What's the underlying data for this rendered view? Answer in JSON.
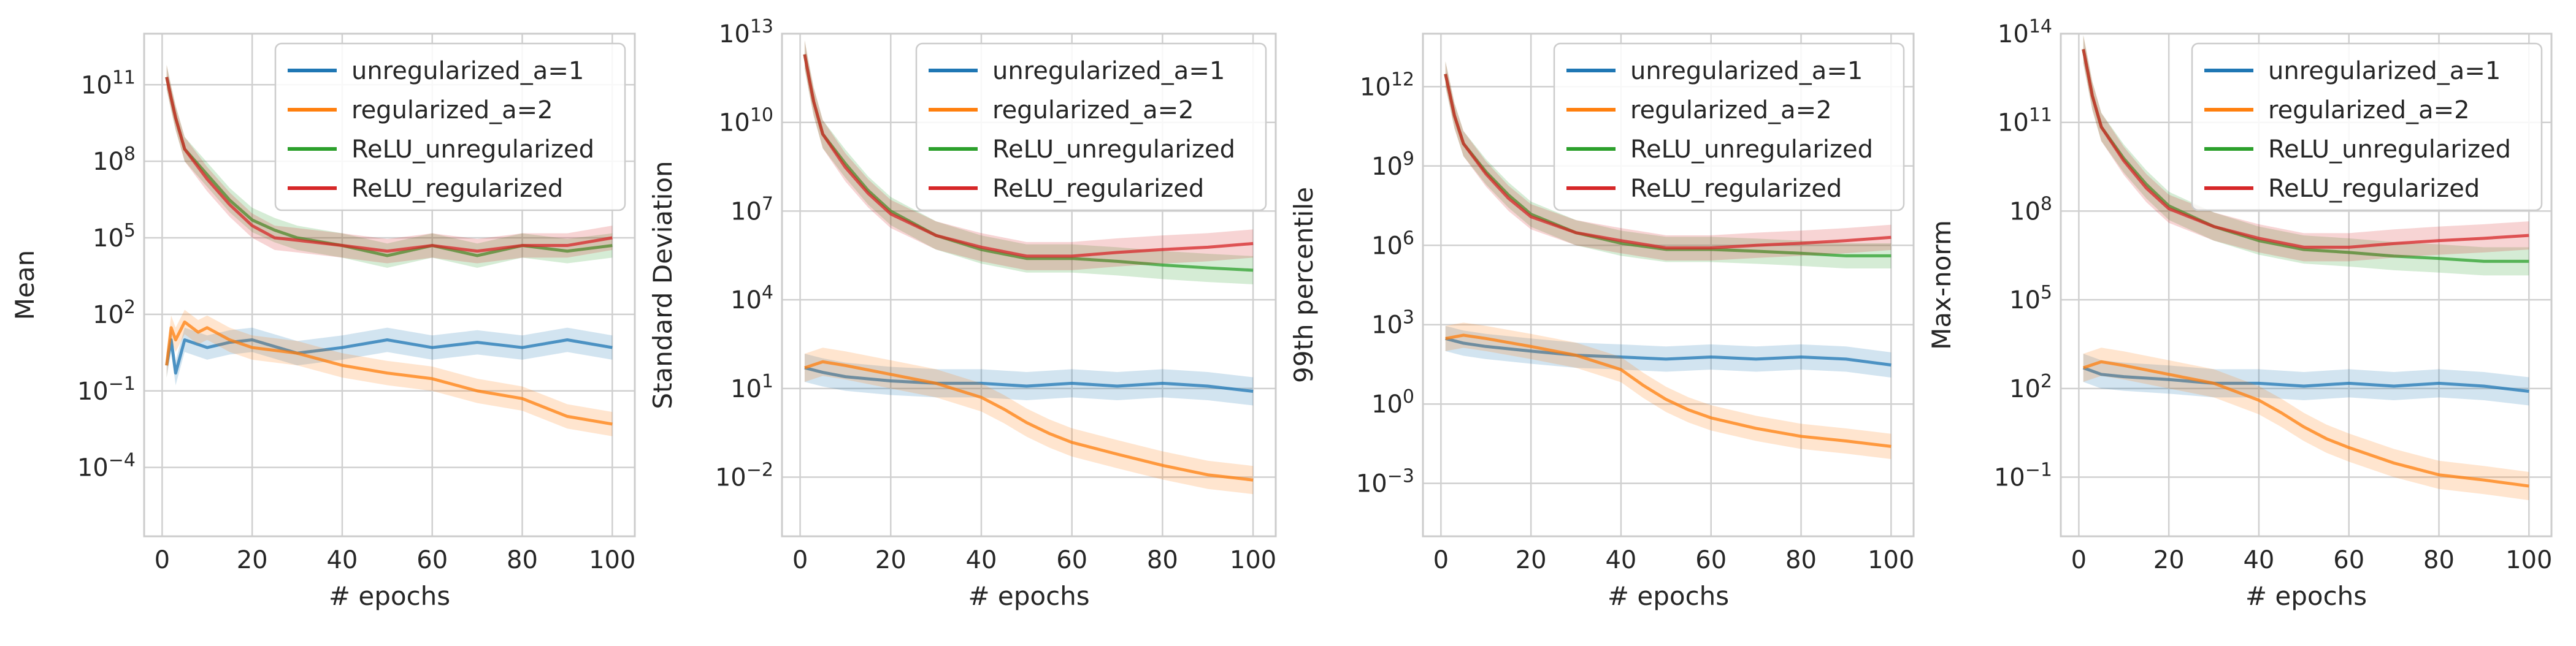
{
  "figure": {
    "background": "#ffffff"
  },
  "colors": {
    "grid": "#d0d0d0",
    "frame": "#cccccc",
    "text": "#262626"
  },
  "chart_data": [
    {
      "type": "line",
      "xlabel": "# epochs",
      "ylabel": "Mean",
      "yscale": "log",
      "xlim": [
        -4,
        105
      ],
      "ylim": [
        2e-07,
        10000000000000.0
      ],
      "xticks": [
        0,
        20,
        40,
        60,
        80,
        100
      ],
      "yticks": [
        0.0001,
        0.1,
        100.0,
        100000.0,
        100000000.0,
        100000000000.0
      ],
      "ytick_labels": [
        [
          "10",
          "−4"
        ],
        [
          "10",
          "−1"
        ],
        [
          "10",
          "2"
        ],
        [
          "10",
          "5"
        ],
        [
          "10",
          "8"
        ],
        [
          "10",
          "11"
        ]
      ],
      "grid": true,
      "legend": "upper right",
      "series": [
        {
          "name": "unregularized_a=1",
          "color": "#1f77b4",
          "x": [
            1,
            2,
            3,
            5,
            10,
            15,
            20,
            30,
            40,
            50,
            60,
            70,
            80,
            90,
            100
          ],
          "y": [
            1,
            10,
            0.5,
            10,
            5,
            8,
            10,
            3,
            5,
            10,
            5,
            8,
            5,
            10,
            5
          ]
        },
        {
          "name": "regularized_a=2",
          "color": "#ff7f0e",
          "x": [
            1,
            2,
            3,
            5,
            8,
            10,
            15,
            20,
            30,
            40,
            50,
            60,
            70,
            80,
            90,
            100
          ],
          "y": [
            1,
            30,
            10,
            50,
            20,
            30,
            10,
            5,
            3,
            1,
            0.5,
            0.3,
            0.1,
            0.05,
            0.01,
            0.005
          ]
        },
        {
          "name": "ReLU_unregularized",
          "color": "#2ca02c",
          "x": [
            1,
            2,
            3,
            5,
            10,
            15,
            20,
            25,
            30,
            40,
            50,
            60,
            70,
            80,
            90,
            100
          ],
          "y": [
            200000000000.0,
            30000000000.0,
            5000000000.0,
            300000000.0,
            30000000.0,
            3000000.0,
            500000.0,
            200000.0,
            100000.0,
            50000.0,
            20000.0,
            50000.0,
            20000.0,
            50000.0,
            30000.0,
            50000.0
          ]
        },
        {
          "name": "ReLU_regularized",
          "color": "#d62728",
          "x": [
            1,
            2,
            3,
            5,
            10,
            15,
            20,
            25,
            30,
            40,
            50,
            60,
            70,
            80,
            90,
            100
          ],
          "y": [
            200000000000.0,
            30000000000.0,
            5000000000.0,
            300000000.0,
            20000000.0,
            2000000.0,
            300000.0,
            100000.0,
            80000.0,
            50000.0,
            30000.0,
            50000.0,
            30000.0,
            50000.0,
            50000.0,
            100000.0
          ]
        }
      ]
    },
    {
      "type": "line",
      "xlabel": "# epochs",
      "ylabel": "Standard Deviation",
      "yscale": "log",
      "xlim": [
        -4,
        105
      ],
      "ylim": [
        0.0001,
        10000000000000.0
      ],
      "xticks": [
        0,
        20,
        40,
        60,
        80,
        100
      ],
      "yticks": [
        0.01,
        10.0,
        10000.0,
        10000000.0,
        10000000000.0,
        10000000000000.0
      ],
      "ytick_labels": [
        [
          "10",
          "−2"
        ],
        [
          "10",
          "1"
        ],
        [
          "10",
          "4"
        ],
        [
          "10",
          "7"
        ],
        [
          "10",
          "10"
        ],
        [
          "10",
          "13"
        ]
      ],
      "grid": true,
      "legend": "upper right",
      "series": [
        {
          "name": "unregularized_a=1",
          "color": "#1f77b4",
          "x": [
            1,
            5,
            10,
            20,
            30,
            40,
            50,
            60,
            70,
            80,
            90,
            100
          ],
          "y": [
            50,
            35,
            25,
            18,
            15,
            15,
            12,
            15,
            12,
            15,
            12,
            8
          ]
        },
        {
          "name": "regularized_a=2",
          "color": "#ff7f0e",
          "x": [
            1,
            5,
            10,
            20,
            30,
            40,
            45,
            50,
            55,
            60,
            70,
            80,
            90,
            100
          ],
          "y": [
            50,
            80,
            60,
            30,
            15,
            5,
            2,
            0.7,
            0.3,
            0.15,
            0.06,
            0.025,
            0.012,
            0.008
          ]
        },
        {
          "name": "ReLU_unregularized",
          "color": "#2ca02c",
          "x": [
            1,
            2,
            3,
            5,
            10,
            15,
            20,
            30,
            40,
            50,
            60,
            70,
            80,
            90,
            100
          ],
          "y": [
            2000000000000.0,
            300000000000.0,
            50000000000.0,
            4000000000.0,
            400000000.0,
            50000000.0,
            10000000.0,
            1500000.0,
            500000.0,
            250000.0,
            250000.0,
            200000.0,
            150000.0,
            120000.0,
            100000.0
          ]
        },
        {
          "name": "ReLU_regularized",
          "color": "#d62728",
          "x": [
            1,
            2,
            3,
            5,
            10,
            15,
            20,
            30,
            40,
            50,
            60,
            70,
            80,
            90,
            100
          ],
          "y": [
            2000000000000.0,
            300000000000.0,
            50000000000.0,
            4000000000.0,
            300000000.0,
            40000000.0,
            8000000.0,
            1500000.0,
            600000.0,
            300000.0,
            300000.0,
            400000.0,
            500000.0,
            600000.0,
            800000.0
          ]
        }
      ]
    },
    {
      "type": "line",
      "xlabel": "# epochs",
      "ylabel": "99th percentile",
      "yscale": "log",
      "xlim": [
        -4,
        105
      ],
      "ylim": [
        1e-05,
        100000000000000.0
      ],
      "xticks": [
        0,
        20,
        40,
        60,
        80,
        100
      ],
      "yticks": [
        0.001,
        1.0,
        1000.0,
        1000000.0,
        1000000000.0,
        1000000000000.0
      ],
      "ytick_labels": [
        [
          "10",
          "−3"
        ],
        [
          "10",
          "0"
        ],
        [
          "10",
          "3"
        ],
        [
          "10",
          "6"
        ],
        [
          "10",
          "9"
        ],
        [
          "10",
          "12"
        ]
      ],
      "grid": true,
      "legend": "upper right",
      "series": [
        {
          "name": "unregularized_a=1",
          "color": "#1f77b4",
          "x": [
            1,
            5,
            10,
            20,
            30,
            40,
            50,
            60,
            70,
            80,
            90,
            100
          ],
          "y": [
            300,
            200,
            150,
            100,
            70,
            60,
            50,
            60,
            50,
            60,
            50,
            30
          ]
        },
        {
          "name": "regularized_a=2",
          "color": "#ff7f0e",
          "x": [
            1,
            5,
            10,
            20,
            30,
            40,
            45,
            50,
            55,
            60,
            70,
            80,
            90,
            100
          ],
          "y": [
            300,
            400,
            300,
            150,
            70,
            20,
            5,
            1.5,
            0.6,
            0.3,
            0.12,
            0.06,
            0.04,
            0.025
          ]
        },
        {
          "name": "ReLU_unregularized",
          "color": "#2ca02c",
          "x": [
            1,
            2,
            3,
            5,
            10,
            15,
            20,
            30,
            40,
            50,
            60,
            70,
            80,
            90,
            100
          ],
          "y": [
            3000000000000.0,
            500000000000.0,
            80000000000.0,
            7000000000.0,
            600000000.0,
            80000000.0,
            15000000.0,
            3000000.0,
            1200000.0,
            700000.0,
            700000.0,
            600000.0,
            500000.0,
            400000.0,
            400000.0
          ]
        },
        {
          "name": "ReLU_regularized",
          "color": "#d62728",
          "x": [
            1,
            2,
            3,
            5,
            10,
            15,
            20,
            30,
            40,
            50,
            60,
            70,
            80,
            90,
            100
          ],
          "y": [
            3000000000000.0,
            500000000000.0,
            80000000000.0,
            7000000000.0,
            500000000.0,
            60000000.0,
            12000000.0,
            3000000.0,
            1500000.0,
            800000.0,
            800000.0,
            1000000.0,
            1200000.0,
            1500000.0,
            2000000.0
          ]
        }
      ]
    },
    {
      "type": "line",
      "xlabel": "# epochs",
      "ylabel": "Max-norm",
      "yscale": "log",
      "xlim": [
        -4,
        105
      ],
      "ylim": [
        0.001,
        100000000000000.0
      ],
      "xticks": [
        0,
        20,
        40,
        60,
        80,
        100
      ],
      "yticks": [
        0.1,
        100.0,
        100000.0,
        100000000.0,
        100000000000.0,
        100000000000000.0
      ],
      "ytick_labels": [
        [
          "10",
          "−1"
        ],
        [
          "10",
          "2"
        ],
        [
          "10",
          "5"
        ],
        [
          "10",
          "8"
        ],
        [
          "10",
          "11"
        ],
        [
          "10",
          "14"
        ]
      ],
      "grid": true,
      "legend": "upper right",
      "series": [
        {
          "name": "unregularized_a=1",
          "color": "#1f77b4",
          "x": [
            1,
            5,
            10,
            20,
            30,
            40,
            50,
            60,
            70,
            80,
            90,
            100
          ],
          "y": [
            500,
            300,
            250,
            200,
            150,
            150,
            120,
            150,
            120,
            150,
            120,
            80
          ]
        },
        {
          "name": "regularized_a=2",
          "color": "#ff7f0e",
          "x": [
            1,
            5,
            10,
            20,
            30,
            40,
            45,
            50,
            55,
            60,
            70,
            80,
            90,
            100
          ],
          "y": [
            500,
            800,
            600,
            300,
            150,
            40,
            15,
            5,
            2,
            1,
            0.3,
            0.12,
            0.08,
            0.05
          ]
        },
        {
          "name": "ReLU_unregularized",
          "color": "#2ca02c",
          "x": [
            1,
            2,
            3,
            5,
            10,
            15,
            20,
            30,
            40,
            50,
            60,
            70,
            80,
            90,
            100
          ],
          "y": [
            30000000000000.0,
            5000000000000.0,
            800000000000.0,
            70000000000.0,
            6000000000.0,
            800000000.0,
            150000000.0,
            30000000.0,
            10000000.0,
            5000000.0,
            4000000.0,
            3000000.0,
            2500000.0,
            2000000.0,
            2000000.0
          ]
        },
        {
          "name": "ReLU_regularized",
          "color": "#d62728",
          "x": [
            1,
            2,
            3,
            5,
            10,
            15,
            20,
            30,
            40,
            50,
            60,
            70,
            80,
            90,
            100
          ],
          "y": [
            30000000000000.0,
            5000000000000.0,
            800000000000.0,
            70000000000.0,
            5000000000.0,
            600000000.0,
            120000000.0,
            30000000.0,
            12000000.0,
            6000000.0,
            6000000.0,
            8000000.0,
            10000000.0,
            12000000.0,
            15000000.0
          ]
        }
      ]
    }
  ]
}
